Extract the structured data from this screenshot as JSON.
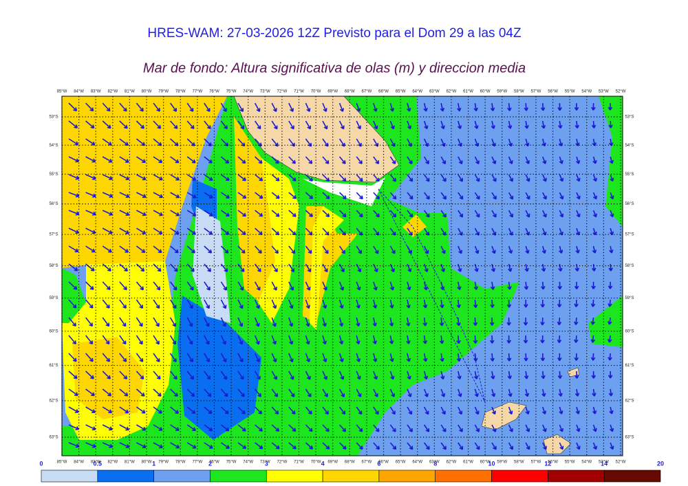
{
  "title": "HRES-WAM: 27-03-2026 12Z Previsto para el Dom 29 a las 04Z",
  "subtitle": "Mar de fondo: Altura significativa de olas (m) y direccion media",
  "map": {
    "lon_ticks": [
      {
        "value": -85,
        "label": "85°W"
      },
      {
        "value": -84,
        "label": "84°W"
      },
      {
        "value": -83,
        "label": "83°W"
      },
      {
        "value": -82,
        "label": "82°W"
      },
      {
        "value": -81,
        "label": "81°W"
      },
      {
        "value": -80,
        "label": "80°W"
      },
      {
        "value": -79,
        "label": "79°W"
      },
      {
        "value": -78,
        "label": "78°W"
      },
      {
        "value": -77,
        "label": "77°W"
      },
      {
        "value": -76,
        "label": "76°W"
      },
      {
        "value": -75,
        "label": "75°W"
      },
      {
        "value": -74,
        "label": "74°W"
      },
      {
        "value": -73,
        "label": "73°W"
      },
      {
        "value": -72,
        "label": "72°W"
      },
      {
        "value": -71,
        "label": "71°W"
      },
      {
        "value": -70,
        "label": "70°W"
      },
      {
        "value": -69,
        "label": "69°W"
      },
      {
        "value": -68,
        "label": "68°W"
      },
      {
        "value": -67,
        "label": "67°W"
      },
      {
        "value": -66,
        "label": "66°W"
      },
      {
        "value": -65,
        "label": "65°W"
      },
      {
        "value": -64,
        "label": "64°W"
      },
      {
        "value": -63,
        "label": "63°W"
      },
      {
        "value": -62,
        "label": "62°W"
      },
      {
        "value": -61,
        "label": "61°W"
      },
      {
        "value": -60,
        "label": "60°W"
      },
      {
        "value": -59,
        "label": "59°W"
      },
      {
        "value": -58,
        "label": "58°W"
      },
      {
        "value": -57,
        "label": "57°W"
      },
      {
        "value": -56,
        "label": "56°W"
      },
      {
        "value": -55,
        "label": "55°W"
      },
      {
        "value": -54,
        "label": "54°W"
      },
      {
        "value": -53,
        "label": "53°W"
      },
      {
        "value": -52,
        "label": "52°W"
      }
    ],
    "lat_ticks": [
      {
        "value": -53,
        "label": "53°S"
      },
      {
        "value": -54,
        "label": "54°S"
      },
      {
        "value": -55,
        "label": "55°S"
      },
      {
        "value": -56,
        "label": "56°S"
      },
      {
        "value": -57,
        "label": "57°S"
      },
      {
        "value": -58,
        "label": "58°S"
      },
      {
        "value": -59,
        "label": "59°S"
      },
      {
        "value": -60,
        "label": "60°S"
      },
      {
        "value": -61,
        "label": "61°S"
      },
      {
        "value": -62,
        "label": "62°S"
      },
      {
        "value": -63,
        "label": "63°S"
      }
    ]
  },
  "colorbar": {
    "ticks": [
      0,
      0.5,
      1,
      2,
      3,
      4,
      6,
      8,
      10,
      12,
      14,
      20
    ],
    "colors": [
      "#c8dcf5",
      "#0a6ef0",
      "#6ea0f0",
      "#1ee61e",
      "#ffff00",
      "#ffd700",
      "#ffa500",
      "#ff7000",
      "#ff0000",
      "#a00000",
      "#640a00",
      "#3a3a3a"
    ]
  }
}
